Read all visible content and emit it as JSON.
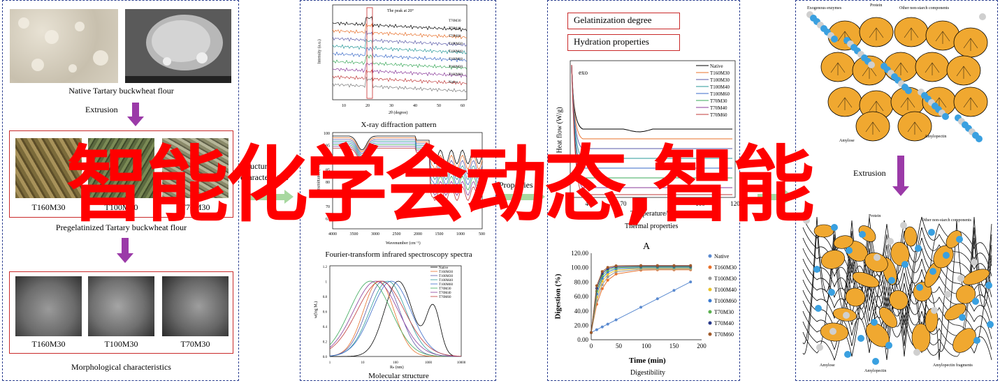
{
  "panel1": {
    "native_caption": "Native Tartary buckwheat flour",
    "extrusion_label": "Extrusion",
    "pregel_labels": [
      "T160M30",
      "T100M30",
      "T70M30"
    ],
    "pregel_caption": "Pregelatinized Tartary buckwheat flour",
    "morph_labels": [
      "T160M30",
      "T100M30",
      "T70M30"
    ],
    "morph_caption": "Morphological characteristics"
  },
  "connectors": {
    "structural": "Structural characteristics",
    "properties": "Properties"
  },
  "panel2": {
    "xrd_caption": "X-ray diffraction pattern",
    "xrd_note": "The peak at 20°",
    "xrd_ylabel": "Intensity (a.u.)",
    "xrd_xlabel": "2θ (degree)",
    "xrd_ticks": [
      "10",
      "20",
      "30",
      "40",
      "50",
      "60"
    ],
    "xrd_series": [
      "T70M30",
      "T70M40",
      "T70M60",
      "T100M30",
      "T100M40",
      "T100M60",
      "T160M30",
      "T160M60",
      "Native"
    ],
    "ftir_caption": "Fourier-transform infrared spectroscopy spectra",
    "ftir_ylabel": "Transmittance (%)",
    "ftir_xlabel": "Wavenumber (cm⁻¹)",
    "ftir_yticks": [
      "100",
      "95",
      "90",
      "85",
      "80",
      "75",
      "70",
      "65"
    ],
    "ftir_xticks": [
      "4000",
      "3500",
      "3000",
      "2500",
      "2000",
      "1500",
      "1000",
      "500"
    ],
    "mol_caption": "Molecular structure",
    "mol_ylabel": "w(log Mᵥ)",
    "mol_xlabel": "Rₕ (nm)",
    "mol_yticks": [
      "1.2",
      "1",
      "0.8",
      "0.6",
      "0.4",
      "0.2",
      "0.0"
    ],
    "mol_xticks": [
      "1",
      "10",
      "100",
      "1000",
      "10000"
    ],
    "mol_series": [
      "Native",
      "T160M30",
      "T100M30",
      "T100M40",
      "T100M60",
      "T70M30",
      "T70M40",
      "T70M60"
    ]
  },
  "panel3": {
    "box1": "Gelatinization degree",
    "box2": "Hydration properties",
    "dsc_ylabel": "Heat flow (W/g)",
    "dsc_exo": "exo",
    "dsc_xlabel": "Temperature/°C",
    "dsc_xticks": [
      "40",
      "70",
      "100",
      "120"
    ],
    "dsc_series": [
      "Native",
      "T160M30",
      "T100M30",
      "T100M40",
      "T100M60",
      "T70M30",
      "T70M40",
      "T70M60"
    ],
    "thermal_caption": "Thermal properties",
    "panel_letter": "A",
    "dig_ylabel": "Digestion (%)",
    "dig_xlabel": "Time (min)",
    "dig_yticks": [
      "120.00",
      "100.00",
      "80.00",
      "60.00",
      "40.00",
      "20.00",
      "0.00"
    ],
    "dig_xticks": [
      "0",
      "50",
      "100",
      "150",
      "200"
    ],
    "dig_series": [
      "Native",
      "T160M30",
      "T100M30",
      "T100M40",
      "T100M60",
      "T70M30",
      "T70M40",
      "T70M60"
    ],
    "dig_caption": "Digestibility"
  },
  "panel4": {
    "top_labels": [
      "Exogenous enzymes",
      "Protein",
      "Other non-starch components",
      "Amylose",
      "Amylopectin"
    ],
    "extrusion_label": "Extrusion",
    "bottom_labels": [
      "Protein",
      "Other non-starch components",
      "Amylose",
      "Amylopectin",
      "Amylopectin fragments"
    ]
  },
  "watermark": "智能化学会动态,智能",
  "colors": {
    "border": "#2a3d8f",
    "red_box": "#c92a2a",
    "purple_arrow": "#9b3aa8",
    "green_arrow": "#a8d8a0",
    "granule": "#f0a830",
    "blue_dot": "#3aa0e0",
    "watermark": "#ff0000"
  }
}
